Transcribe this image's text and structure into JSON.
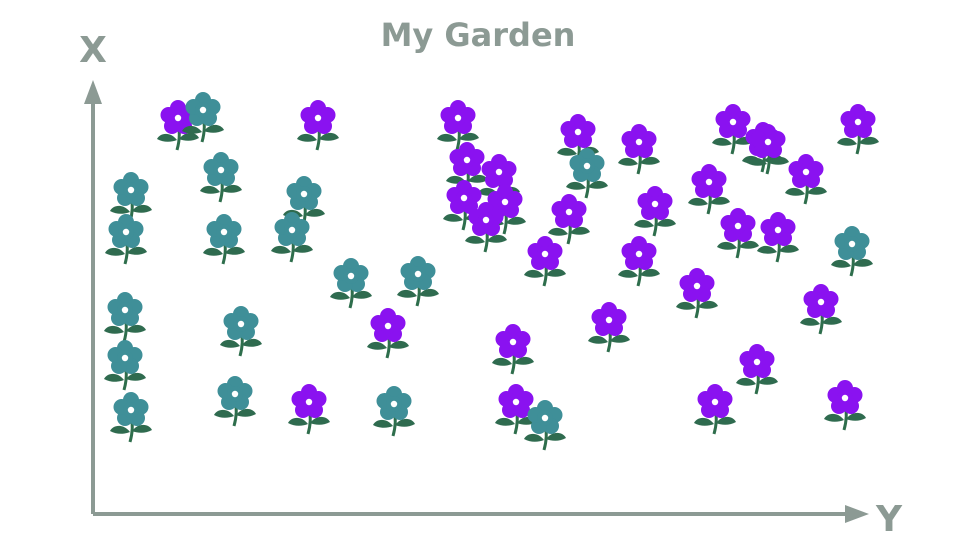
{
  "chart_data": {
    "type": "scatter",
    "title": "My Garden",
    "xlabel": "Y",
    "ylabel": "X",
    "grid": false,
    "legend": "none",
    "colors": {
      "axis": "#8c9a94",
      "title": "#8c9a94",
      "purple_petal": "#8a12f0",
      "teal_petal": "#3f8f98",
      "stem": "#2e6e4c",
      "leaf": "#2f6b4f"
    },
    "marker_icon": "flower-icon",
    "series": [
      {
        "color": "#8a12f0",
        "points": [
          {
            "x": 85,
            "y": 91
          },
          {
            "x": 225,
            "y": 91
          },
          {
            "x": 365,
            "y": 91
          },
          {
            "x": 485,
            "y": 84
          },
          {
            "x": 546,
            "y": 79
          },
          {
            "x": 640,
            "y": 89
          },
          {
            "x": 670,
            "y": 80
          },
          {
            "x": 675,
            "y": 79
          },
          {
            "x": 765,
            "y": 89
          },
          {
            "x": 374,
            "y": 70
          },
          {
            "x": 406,
            "y": 64
          },
          {
            "x": 713,
            "y": 64
          },
          {
            "x": 616,
            "y": 59
          },
          {
            "x": 371,
            "y": 51
          },
          {
            "x": 412,
            "y": 49
          },
          {
            "x": 562,
            "y": 48
          },
          {
            "x": 476,
            "y": 44
          },
          {
            "x": 393,
            "y": 40
          },
          {
            "x": 685,
            "y": 35
          },
          {
            "x": 645,
            "y": 37
          },
          {
            "x": 452,
            "y": 23
          },
          {
            "x": 546,
            "y": 23
          },
          {
            "x": 604,
            "y": 7
          },
          {
            "x": 728,
            "y": -1
          },
          {
            "x": 295,
            "y": -13
          },
          {
            "x": 516,
            "y": -10
          },
          {
            "x": 420,
            "y": -21
          },
          {
            "x": 664,
            "y": -31
          },
          {
            "x": 216,
            "y": -51
          },
          {
            "x": 423,
            "y": -51
          },
          {
            "x": 622,
            "y": -51
          },
          {
            "x": 752,
            "y": -49
          }
        ]
      },
      {
        "color": "#3f8f98",
        "points": [
          {
            "x": 110,
            "y": 95
          },
          {
            "x": 128,
            "y": 65
          },
          {
            "x": 38,
            "y": 55
          },
          {
            "x": 211,
            "y": 53
          },
          {
            "x": 494,
            "y": 67
          },
          {
            "x": 33,
            "y": 34
          },
          {
            "x": 131,
            "y": 34
          },
          {
            "x": 199,
            "y": 35
          },
          {
            "x": 759,
            "y": 28
          },
          {
            "x": 258,
            "y": 12
          },
          {
            "x": 325,
            "y": 13
          },
          {
            "x": 32,
            "y": -5
          },
          {
            "x": 148,
            "y": -12
          },
          {
            "x": 32,
            "y": -29
          },
          {
            "x": 142,
            "y": -47
          },
          {
            "x": 38,
            "y": -55
          },
          {
            "x": 301,
            "y": -52
          },
          {
            "x": 452,
            "y": -59
          }
        ]
      }
    ]
  }
}
